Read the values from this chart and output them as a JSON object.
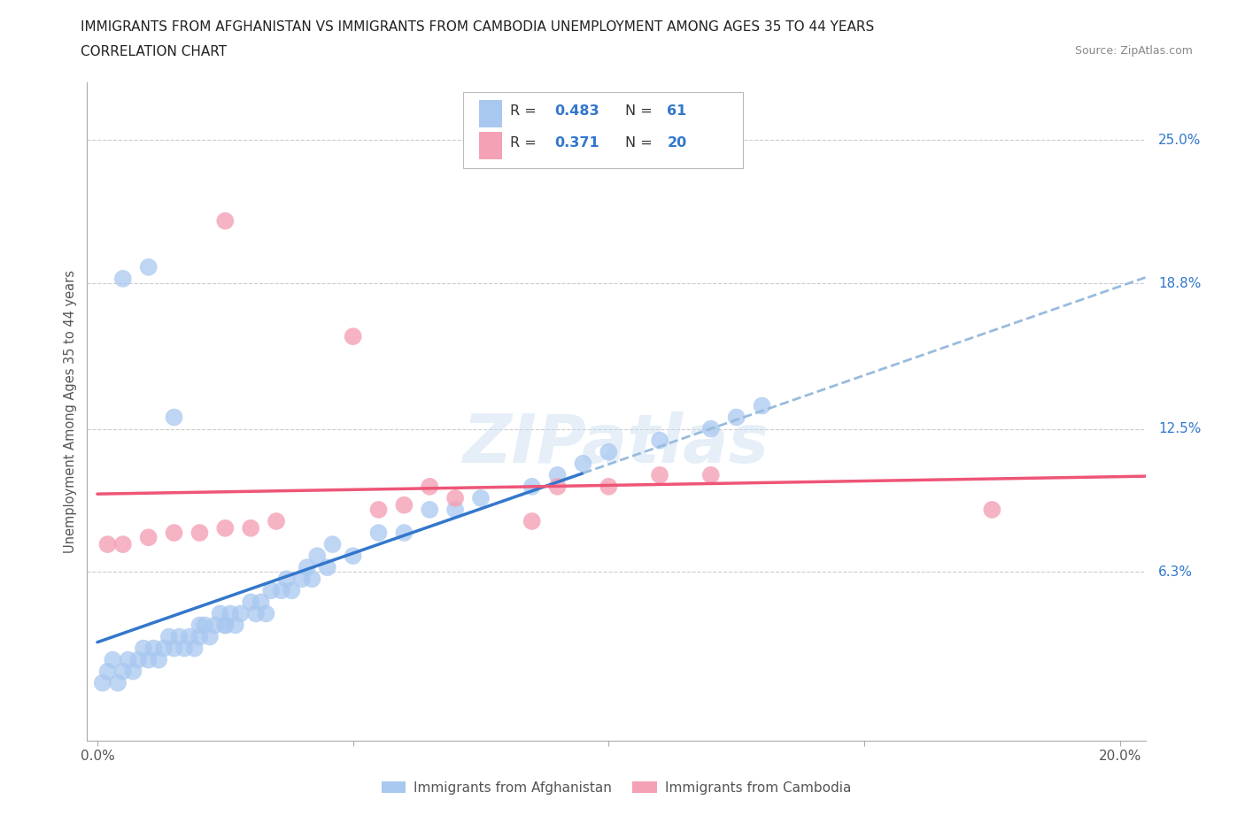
{
  "title_line1": "IMMIGRANTS FROM AFGHANISTAN VS IMMIGRANTS FROM CAMBODIA UNEMPLOYMENT AMONG AGES 35 TO 44 YEARS",
  "title_line2": "CORRELATION CHART",
  "source": "Source: ZipAtlas.com",
  "ylabel": "Unemployment Among Ages 35 to 44 years",
  "y_tick_labels": [
    "6.3%",
    "12.5%",
    "18.8%",
    "25.0%"
  ],
  "y_tick_values": [
    0.063,
    0.125,
    0.188,
    0.25
  ],
  "xlim": [
    -0.002,
    0.205
  ],
  "ylim": [
    -0.01,
    0.275
  ],
  "afghanistan_color": "#a8c8f0",
  "cambodia_color": "#f4a0b5",
  "afghanistan_line_color": "#3377cc",
  "cambodia_line_color": "#ee5577",
  "dashed_line_color": "#99bbdd",
  "R_afghanistan": 0.483,
  "N_afghanistan": 61,
  "R_cambodia": 0.371,
  "N_cambodia": 20,
  "watermark": "ZIPatlas",
  "legend_label_afghanistan": "Immigrants from Afghanistan",
  "legend_label_cambodia": "Immigrants from Cambodia",
  "afg_x": [
    0.001,
    0.002,
    0.003,
    0.004,
    0.005,
    0.006,
    0.007,
    0.008,
    0.009,
    0.01,
    0.011,
    0.012,
    0.013,
    0.014,
    0.015,
    0.016,
    0.017,
    0.018,
    0.019,
    0.02,
    0.021,
    0.022,
    0.023,
    0.024,
    0.025,
    0.026,
    0.027,
    0.028,
    0.03,
    0.031,
    0.032,
    0.033,
    0.034,
    0.036,
    0.037,
    0.038,
    0.04,
    0.041,
    0.042,
    0.043,
    0.045,
    0.046,
    0.05,
    0.055,
    0.06,
    0.065,
    0.07,
    0.075,
    0.085,
    0.09,
    0.095,
    0.1,
    0.11,
    0.12,
    0.125,
    0.13,
    0.005,
    0.01,
    0.015,
    0.02,
    0.025
  ],
  "afg_y": [
    0.015,
    0.02,
    0.025,
    0.015,
    0.02,
    0.025,
    0.02,
    0.025,
    0.03,
    0.025,
    0.03,
    0.025,
    0.03,
    0.035,
    0.03,
    0.035,
    0.03,
    0.035,
    0.03,
    0.035,
    0.04,
    0.035,
    0.04,
    0.045,
    0.04,
    0.045,
    0.04,
    0.045,
    0.05,
    0.045,
    0.05,
    0.045,
    0.055,
    0.055,
    0.06,
    0.055,
    0.06,
    0.065,
    0.06,
    0.07,
    0.065,
    0.075,
    0.07,
    0.08,
    0.08,
    0.09,
    0.09,
    0.095,
    0.1,
    0.105,
    0.11,
    0.115,
    0.12,
    0.125,
    0.13,
    0.135,
    0.19,
    0.195,
    0.13,
    0.04,
    0.04
  ],
  "camb_x": [
    0.002,
    0.005,
    0.01,
    0.015,
    0.02,
    0.025,
    0.03,
    0.035,
    0.05,
    0.055,
    0.06,
    0.065,
    0.07,
    0.09,
    0.1,
    0.11,
    0.12,
    0.175,
    0.025,
    0.085
  ],
  "camb_y": [
    0.075,
    0.075,
    0.078,
    0.08,
    0.08,
    0.082,
    0.082,
    0.085,
    0.165,
    0.09,
    0.092,
    0.1,
    0.095,
    0.1,
    0.1,
    0.105,
    0.105,
    0.09,
    0.215,
    0.085
  ]
}
